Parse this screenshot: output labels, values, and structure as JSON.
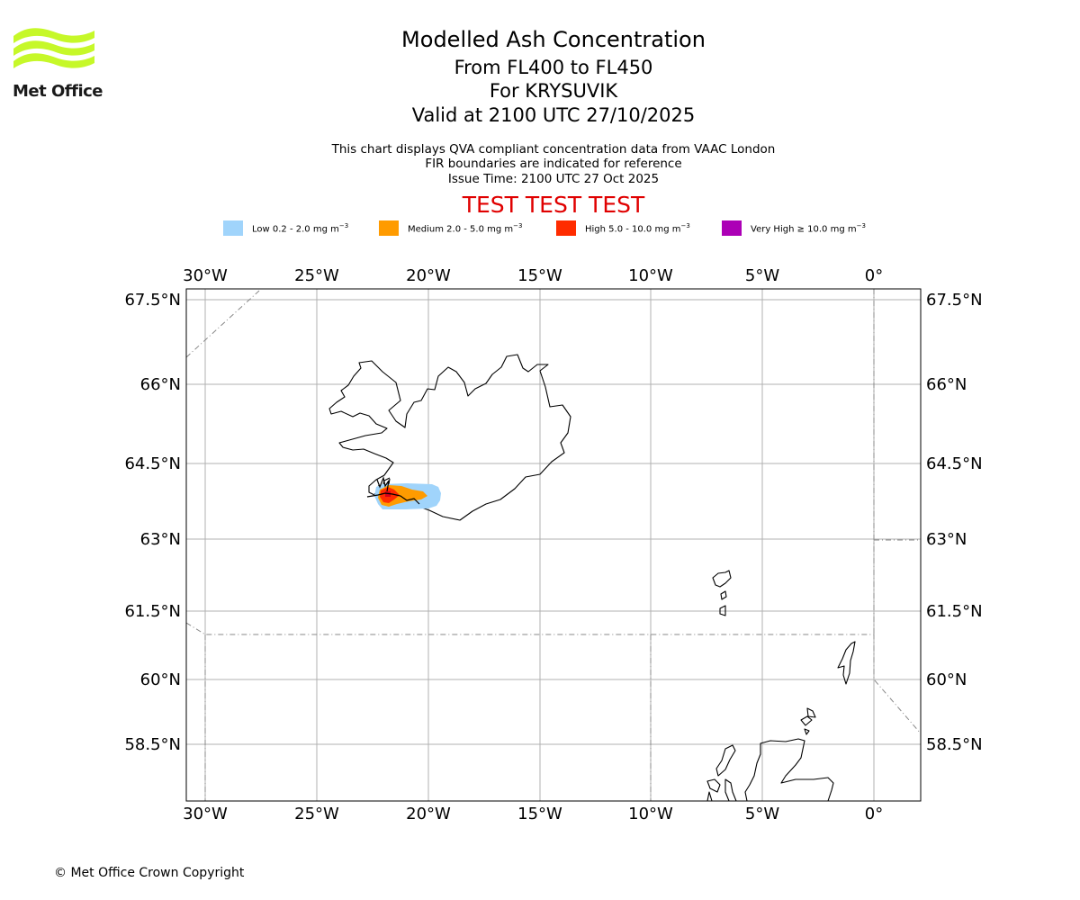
{
  "logo": {
    "text": "Met Office",
    "color": "#c6f829"
  },
  "header": {
    "title": "Modelled Ash Concentration",
    "level_range": "From FL400 to FL450",
    "volcano": "For KRYSUVIK",
    "valid_time": "Valid at 2100 UTC 27/10/2025",
    "info_line_1": "This chart displays QVA compliant concentration data from VAAC London",
    "info_line_2": "FIR boundaries are indicated for reference",
    "issue_time": "Issue Time: 2100 UTC 27 Oct 2025",
    "test_banner": "TEST TEST TEST",
    "test_color": "#e00000"
  },
  "legend": [
    {
      "text": "Low 0.2 - 2.0 mg m",
      "color": "#a0d4fb"
    },
    {
      "text": "Medium 2.0 - 5.0 mg m",
      "color": "#ff9b00"
    },
    {
      "text": "High 5.0 - 10.0 mg m",
      "color": "#ff2c00"
    },
    {
      "text": "Very High ≥ 10.0 mg m",
      "color": "#ac00b6"
    }
  ],
  "legend_unit_exponent": "−3",
  "map": {
    "lon_labels": [
      "30°W",
      "25°W",
      "20°W",
      "15°W",
      "10°W",
      "5°W",
      "0°"
    ],
    "lat_labels": [
      "67.5°N",
      "66°N",
      "64.5°N",
      "63°N",
      "61.5°N",
      "60°N",
      "58.5°N"
    ],
    "lon_extent": [
      -31.0,
      2.0
    ],
    "lat_extent": [
      57.3,
      67.7
    ]
  },
  "copyright": "© Met Office Crown Copyright"
}
